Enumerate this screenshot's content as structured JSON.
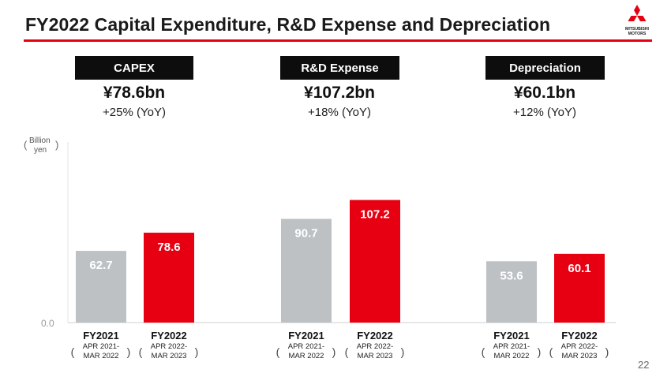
{
  "header": {
    "title": "FY2022 Capital Expenditure, R&D Expense and Depreciation",
    "logo_line1": "MITSUBISHI",
    "logo_line2": "MOTORS",
    "brand_color": "#e60012"
  },
  "metrics": [
    {
      "label": "CAPEX",
      "value": "¥78.6bn",
      "yoy": "+25% (YoY)"
    },
    {
      "label": "R&D Expense",
      "value": "¥107.2bn",
      "yoy": "+18% (YoY)"
    },
    {
      "label": "Depreciation",
      "value": "¥60.1bn",
      "yoy": "+12% (YoY)"
    }
  ],
  "chart_unit": {
    "line1": "Billion",
    "line2": "yen"
  },
  "chart_data": {
    "type": "bar",
    "ylabel": "Billion yen",
    "ylim": [
      0,
      140
    ],
    "zero_label": "0.0",
    "grid": false,
    "colors": {
      "FY2021": "#bdc1c4",
      "FY2022": "#e60012"
    },
    "groups": [
      {
        "name": "CAPEX",
        "bars": [
          {
            "category": "FY2021",
            "sub1": "APR 2021-",
            "sub2": "MAR 2022",
            "value": 62.7,
            "label": "62.7"
          },
          {
            "category": "FY2022",
            "sub1": "APR 2022-",
            "sub2": "MAR 2023",
            "value": 78.6,
            "label": "78.6"
          }
        ]
      },
      {
        "name": "R&D Expense",
        "bars": [
          {
            "category": "FY2021",
            "sub1": "APR 2021-",
            "sub2": "MAR 2022",
            "value": 90.7,
            "label": "90.7"
          },
          {
            "category": "FY2022",
            "sub1": "APR 2022-",
            "sub2": "MAR 2023",
            "value": 107.2,
            "label": "107.2"
          }
        ]
      },
      {
        "name": "Depreciation",
        "bars": [
          {
            "category": "FY2021",
            "sub1": "APR 2021-",
            "sub2": "MAR 2022",
            "value": 53.6,
            "label": "53.6"
          },
          {
            "category": "FY2022",
            "sub1": "APR 2022-",
            "sub2": "MAR 2023",
            "value": 60.1,
            "label": "60.1"
          }
        ]
      }
    ]
  },
  "footer": {
    "page_number": "22"
  }
}
